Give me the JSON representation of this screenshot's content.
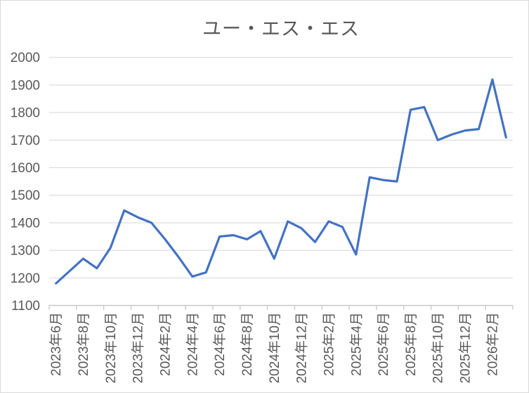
{
  "chart_data": {
    "type": "line",
    "title": "ユー・エス・エス",
    "xlabel": "",
    "ylabel": "",
    "categories": [
      "2023年6月",
      "2023年7月",
      "2023年8月",
      "2023年9月",
      "2023年10月",
      "2023年11月",
      "2023年12月",
      "2024年1月",
      "2024年2月",
      "2024年3月",
      "2024年4月",
      "2024年5月",
      "2024年6月",
      "2024年7月",
      "2024年8月",
      "2024年9月",
      "2024年10月",
      "2024年11月",
      "2024年12月",
      "2025年1月",
      "2025年2月",
      "2025年3月",
      "2025年4月",
      "2025年5月",
      "2025年6月",
      "2025年7月",
      "2025年8月",
      "2025年9月",
      "2025年10月",
      "2025年11月",
      "2025年12月",
      "2026年1月",
      "2026年2月",
      "2026年3月"
    ],
    "values": [
      1180,
      1225,
      1270,
      1235,
      1310,
      1445,
      1420,
      1400,
      1340,
      1275,
      1205,
      1220,
      1350,
      1355,
      1340,
      1370,
      1270,
      1405,
      1380,
      1330,
      1405,
      1385,
      1285,
      1565,
      1555,
      1550,
      1810,
      1820,
      1700,
      1720,
      1735,
      1740,
      1920,
      1710
    ],
    "ylim": [
      1100,
      2000
    ],
    "ytick_step": 100,
    "y_ticks": [
      1100,
      1200,
      1300,
      1400,
      1500,
      1600,
      1700,
      1800,
      1900,
      2000
    ],
    "x_label_interval": 2,
    "x_tick_labels": [
      "2023年6月",
      "2023年8月",
      "2023年10月",
      "2023年12月",
      "2024年2月",
      "2024年4月",
      "2024年6月",
      "2024年8月",
      "2024年10月",
      "2024年12月",
      "2025年2月",
      "2025年4月",
      "2025年6月",
      "2025年8月",
      "2025年10月",
      "2025年12月",
      "2026年2月"
    ],
    "grid": true,
    "legend": "none"
  },
  "colors": {
    "line": "#4472C4",
    "gridline": "#D9D9D9",
    "axis_line": "#C9C9C9",
    "text": "#595959",
    "background": "#FFFFFF",
    "border": "#D9D9D9"
  }
}
